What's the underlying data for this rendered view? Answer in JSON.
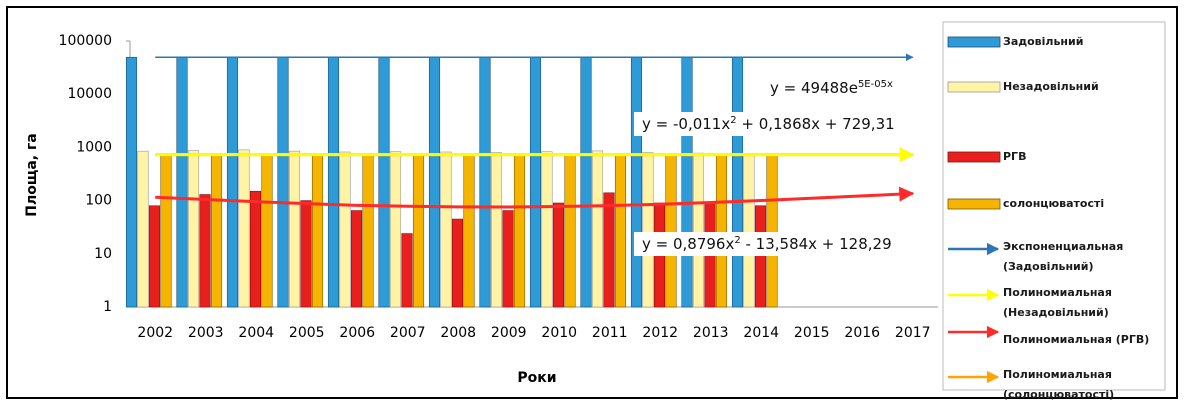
{
  "chart_data": {
    "type": "bar",
    "log_scale": true,
    "y_label": "Площа, га",
    "x_label": "Роки",
    "categories": [
      "2002",
      "2003",
      "2004",
      "2005",
      "2006",
      "2007",
      "2008",
      "2009",
      "2010",
      "2011",
      "2012",
      "2013",
      "2014",
      "2015",
      "2016",
      "2017"
    ],
    "ylim": [
      1,
      100000
    ],
    "yticks": [
      1,
      10,
      100,
      1000,
      10000,
      100000
    ],
    "series": [
      {
        "name": "Задовільний",
        "color": "#2e9bd6",
        "values": [
          49500,
          49500,
          49500,
          49500,
          49500,
          49500,
          49500,
          49500,
          49500,
          49500,
          49500,
          49500,
          49500,
          null,
          null,
          null
        ]
      },
      {
        "name": "Незадовільний",
        "color": "#fff3a6",
        "values": [
          850,
          870,
          900,
          850,
          820,
          830,
          820,
          800,
          830,
          860,
          800,
          780,
          760,
          null,
          null,
          null
        ]
      },
      {
        "name": "РГВ",
        "color": "#e8201d",
        "values": [
          80,
          130,
          150,
          100,
          65,
          24,
          45,
          65,
          90,
          140,
          90,
          90,
          80,
          null,
          null,
          null
        ]
      },
      {
        "name": "солонцюватості",
        "color": "#f5b400",
        "values": [
          730,
          730,
          730,
          730,
          730,
          730,
          730,
          730,
          730,
          730,
          730,
          730,
          730,
          null,
          null,
          null
        ]
      }
    ],
    "trendlines": [
      {
        "name": "Экспоненциальная (Задовільний)",
        "color": "#2e75b6",
        "equation": [
          "y = 49488e",
          "5E-05x"
        ],
        "values": [
          49490,
          49495,
          49500,
          49505,
          49510,
          49515,
          49520,
          49525,
          49530,
          49535,
          49540,
          49545,
          49550,
          49555,
          49560,
          49565
        ]
      },
      {
        "name": "Полиномиальная (Незадовільний)",
        "color": "#ffff00",
        "equation": [
          "y = -0,011x",
          "2",
          " + 0,1868x + 729,31"
        ],
        "values": [
          729.5,
          729.7,
          729.8,
          729.9,
          730,
          730,
          730,
          730,
          729.9,
          729.8,
          729.7,
          729.7,
          729.6,
          729.6,
          729.5,
          729.5
        ]
      },
      {
        "name": "Полиномиальная (РГВ)",
        "color": "#ff2a2a",
        "equation": [
          "y = 0,8796x",
          "2",
          " - 13,584x + 128,29"
        ],
        "values": [
          115.6,
          104.7,
          95.4,
          87.7,
          81.4,
          78.5,
          76.3,
          75.9,
          77.3,
          80.4,
          85.3,
          91.9,
          100.3,
          110.5,
          122.4,
          136.1
        ]
      },
      {
        "name": "Полиномиальная (солонцюватості)",
        "color": "#ffa500",
        "values": [
          730,
          730,
          730,
          730,
          730,
          730,
          730,
          730,
          730,
          730,
          730,
          730,
          730,
          730,
          730,
          730
        ]
      }
    ]
  }
}
